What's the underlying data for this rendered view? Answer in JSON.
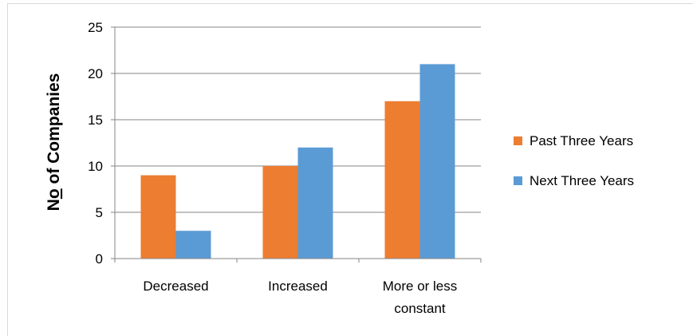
{
  "chart_data": {
    "type": "bar",
    "title": "",
    "xlabel": "",
    "ylabel_parts": [
      "N",
      "o",
      " of Companies"
    ],
    "ylim": [
      0,
      25
    ],
    "yticks": [
      0,
      5,
      10,
      15,
      20,
      25
    ],
    "grid": true,
    "legend_position": "right",
    "categories": [
      [
        "Decreased"
      ],
      [
        "Increased"
      ],
      [
        "More or less",
        "constant"
      ]
    ],
    "series": [
      {
        "name": "Past Three Years",
        "color": "#ed7d31",
        "values": [
          9,
          10,
          17
        ]
      },
      {
        "name": "Next Three Years",
        "color": "#5b9bd5",
        "values": [
          3,
          12,
          21
        ]
      }
    ]
  }
}
